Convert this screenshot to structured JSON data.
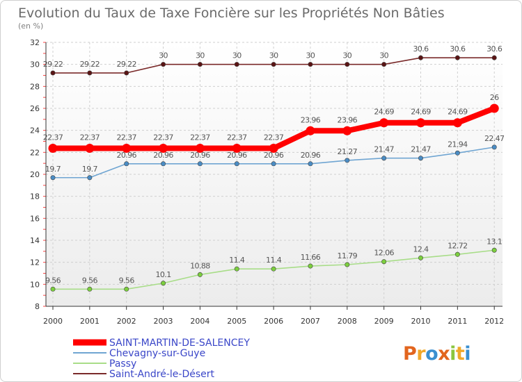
{
  "chart_data": {
    "type": "line",
    "title": "Evolution du Taux de Taxe Foncière sur les Propriétés Non Bâties",
    "subtitle": "(en %)",
    "xlabel": "",
    "ylabel": "",
    "ylim": [
      8,
      32
    ],
    "y_ticks": [
      8,
      10,
      12,
      14,
      16,
      18,
      20,
      22,
      24,
      26,
      28,
      30,
      32
    ],
    "y_tick_labels": [
      "8",
      "10",
      "12",
      "14",
      "16",
      "18",
      "20",
      "22",
      "24",
      "26",
      "28",
      "30",
      "32"
    ],
    "categories": [
      "2000",
      "2001",
      "2002",
      "2003",
      "2004",
      "2005",
      "2006",
      "2007",
      "2008",
      "2009",
      "2010",
      "2011",
      "2012"
    ],
    "grid": true,
    "legend_position": "bottom-left",
    "series": [
      {
        "name": "Saint-André-le-Désert",
        "color": "#7a2a2a",
        "marker_color": "#5a1414",
        "values": [
          29.22,
          29.22,
          29.22,
          30,
          30,
          30,
          30,
          30,
          30,
          30,
          30.6,
          30.6,
          30.6
        ],
        "labels": [
          "29.22",
          "29.22",
          "29.22",
          "30",
          "30",
          "30",
          "30",
          "30",
          "30",
          "30",
          "30.6",
          "30.6",
          "30.6"
        ]
      },
      {
        "name": "Chevagny-sur-Guye",
        "color": "#6fa5d2",
        "marker_color": "#4a8cc4",
        "values": [
          19.7,
          19.7,
          20.96,
          20.96,
          20.96,
          20.96,
          20.96,
          20.96,
          21.27,
          21.47,
          21.47,
          21.94,
          22.47
        ],
        "labels": [
          "19.7",
          "19.7",
          "20.96",
          "20.96",
          "20.96",
          "20.96",
          "20.96",
          "20.96",
          "21.27",
          "21.47",
          "21.47",
          "21.94",
          "22.47"
        ]
      },
      {
        "name": "Passy",
        "color": "#a8dd88",
        "marker_color": "#7ccf3e",
        "values": [
          9.56,
          9.56,
          9.56,
          10.1,
          10.88,
          11.4,
          11.4,
          11.66,
          11.79,
          12.06,
          12.4,
          12.72,
          13.1
        ],
        "labels": [
          "9.56",
          "9.56",
          "9.56",
          "10.1",
          "10.88",
          "11.4",
          "11.4",
          "11.66",
          "11.79",
          "12.06",
          "12.4",
          "12.72",
          "13.1"
        ]
      },
      {
        "name": "SAINT-MARTIN-DE-SALENCEY",
        "color": "#ff0000",
        "marker_color": "#ff0000",
        "values": [
          22.37,
          22.37,
          22.37,
          22.37,
          22.37,
          22.37,
          22.37,
          23.96,
          23.96,
          24.69,
          24.69,
          24.69,
          26
        ],
        "labels": [
          "22.37",
          "22.37",
          "22.37",
          "22.37",
          "22.37",
          "22.37",
          "22.37",
          "23.96",
          "23.96",
          "24.69",
          "24.69",
          "24.69",
          "26"
        ]
      }
    ],
    "legend_order": [
      "SAINT-MARTIN-DE-SALENCEY",
      "Chevagny-sur-Guye",
      "Passy",
      "Saint-André-le-Désert"
    ]
  },
  "logo": {
    "text": "Proxiti",
    "colors": [
      "#e2651e",
      "#f0a82a",
      "#3a8fd0",
      "#e2651e",
      "#8cc63f",
      "#f0a82a",
      "#3a8fd0"
    ]
  }
}
